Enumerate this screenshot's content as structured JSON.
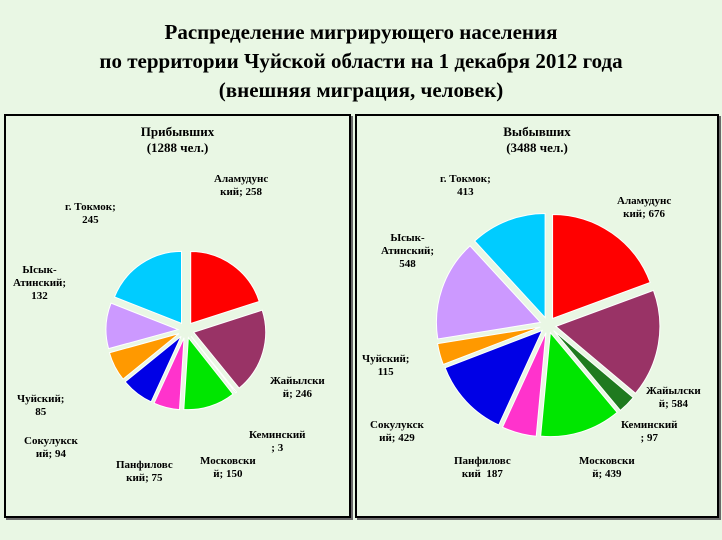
{
  "title_lines": [
    "Распределение мигрирующего населения",
    "по территории Чуйской области на 1 декабря 2012 года",
    "(внешняя миграция, человек)"
  ],
  "chart_data": [
    {
      "type": "pie",
      "title": "Прибывших",
      "subtitle": "(1288 чел.)",
      "series": [
        {
          "name": "Аламудунский",
          "value": 258,
          "color": "#ff0000",
          "label": "Аламудунс\nкий; 258"
        },
        {
          "name": "Жайылский",
          "value": 246,
          "color": "#993366",
          "label": "Жайылски\nй; 246"
        },
        {
          "name": "Кеминский",
          "value": 3,
          "color": "#1f7a1f",
          "label": "Кеминский\n; 3"
        },
        {
          "name": "Московский",
          "value": 150,
          "color": "#00e600",
          "label": "Московски\nй; 150"
        },
        {
          "name": "Панфиловский",
          "value": 75,
          "color": "#ff33cc",
          "label": "Панфиловс\nкий; 75"
        },
        {
          "name": "Сокулукский",
          "value": 94,
          "color": "#0000e6",
          "label": "Сокулукск\nий; 94"
        },
        {
          "name": "Чуйский",
          "value": 85,
          "color": "#ff9900",
          "label": "Чуйский;\n85"
        },
        {
          "name": "Ысык-Атинский",
          "value": 132,
          "color": "#cc99ff",
          "label": "Ысык-\nАтинский;\n132"
        },
        {
          "name": "г. Токмок",
          "value": 245,
          "color": "#00ccff",
          "label": "г. Токмок;\n245"
        }
      ]
    },
    {
      "type": "pie",
      "title": "Выбывших",
      "subtitle": "(3488 чел.)",
      "series": [
        {
          "name": "Аламудунский",
          "value": 676,
          "color": "#ff0000",
          "label": "Аламудунс\nкий; 676"
        },
        {
          "name": "Жайылский",
          "value": 584,
          "color": "#993366",
          "label": "Жайылски\nй; 584"
        },
        {
          "name": "Кеминский",
          "value": 97,
          "color": "#1f7a1f",
          "label": "Кеминский\n; 97"
        },
        {
          "name": "Московский",
          "value": 439,
          "color": "#00e600",
          "label": "Московски\nй; 439"
        },
        {
          "name": "Панфиловский",
          "value": 187,
          "color": "#ff33cc",
          "label": "Панфиловс\nкий  187"
        },
        {
          "name": "Сокулукский",
          "value": 429,
          "color": "#0000e6",
          "label": "Сокулукск\nий; 429"
        },
        {
          "name": "Чуйский",
          "value": 115,
          "color": "#ff9900",
          "label": "Чуйский;\n115"
        },
        {
          "name": "Ысык-Атинский",
          "value": 548,
          "color": "#cc99ff",
          "label": "Ысык-\nАтинский;\n548"
        },
        {
          "name": "г. Токмок",
          "value": 413,
          "color": "#00ccff",
          "label": "г. Токмок;\n413"
        }
      ]
    }
  ]
}
